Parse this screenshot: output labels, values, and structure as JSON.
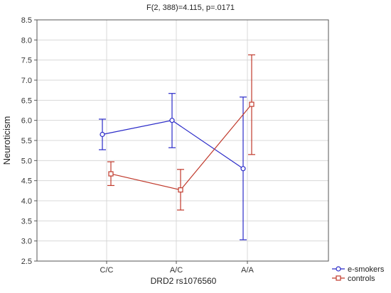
{
  "chart_data": {
    "type": "line",
    "title": "F(2, 388)=4.115, p=.0171",
    "xlabel": "DRD2  rs1076560",
    "ylabel": "Neuroticism",
    "categories": [
      "C/C",
      "A/C",
      "A/A"
    ],
    "ylim": [
      2.5,
      8.5
    ],
    "yticks": [
      "2.5",
      "3.0",
      "3.5",
      "4.0",
      "4.5",
      "5.0",
      "5.5",
      "6.0",
      "6.5",
      "7.0",
      "7.5",
      "8.0",
      "8.5"
    ],
    "grid": true,
    "legend_position": "bottom-right",
    "series": [
      {
        "name": "e-smokers",
        "color": "#2b2bc8",
        "marker": "circle",
        "values": [
          5.65,
          6.0,
          4.8
        ],
        "lower": [
          5.27,
          5.32,
          3.03
        ],
        "upper": [
          6.03,
          6.67,
          6.58
        ]
      },
      {
        "name": "controls",
        "color": "#c0392b",
        "marker": "square",
        "values": [
          4.67,
          4.27,
          6.4
        ],
        "lower": [
          4.38,
          3.77,
          5.15
        ],
        "upper": [
          4.97,
          4.78,
          7.63
        ]
      }
    ]
  }
}
